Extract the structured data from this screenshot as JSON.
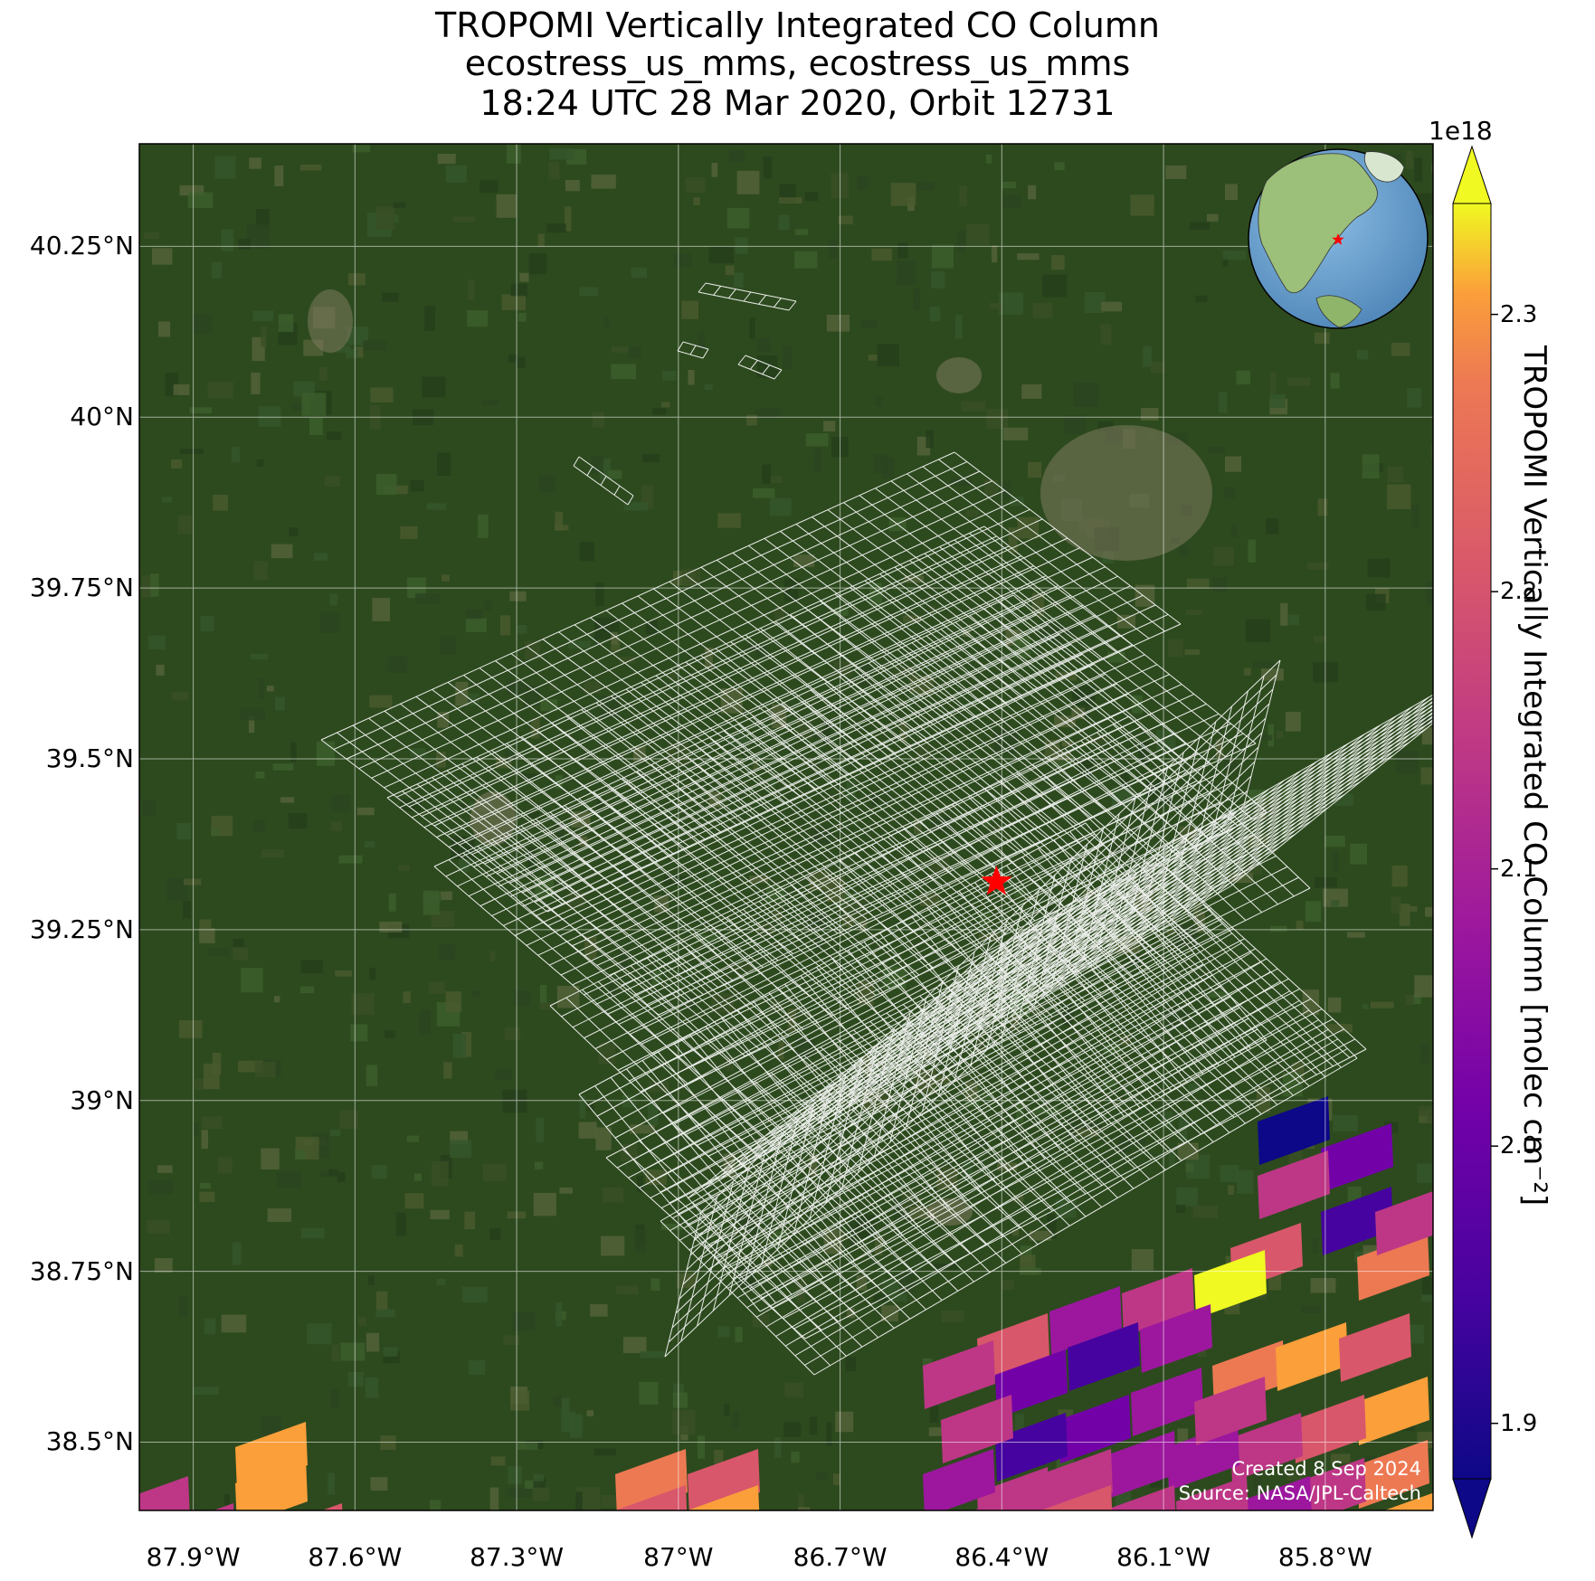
{
  "title": {
    "line1": "TROPOMI Vertically Integrated CO Column",
    "line2": "ecostress_us_mms, ecostress_us_mms",
    "line3": "18:24 UTC 28 Mar 2020, Orbit 12731"
  },
  "map": {
    "lon_range": [
      -88.0,
      -85.6
    ],
    "lat_range": [
      38.4,
      40.4
    ],
    "lat_ticks": [
      {
        "value": 40.25,
        "label": "40.25°N"
      },
      {
        "value": 40.0,
        "label": "40°N"
      },
      {
        "value": 39.75,
        "label": "39.75°N"
      },
      {
        "value": 39.5,
        "label": "39.5°N"
      },
      {
        "value": 39.25,
        "label": "39.25°N"
      },
      {
        "value": 39.0,
        "label": "39°N"
      },
      {
        "value": 38.75,
        "label": "38.75°N"
      },
      {
        "value": 38.5,
        "label": "38.5°N"
      }
    ],
    "lon_ticks": [
      {
        "value": -87.9,
        "label": "87.9°W"
      },
      {
        "value": -87.6,
        "label": "87.6°W"
      },
      {
        "value": -87.3,
        "label": "87.3°W"
      },
      {
        "value": -87.0,
        "label": "87°W"
      },
      {
        "value": -86.7,
        "label": "86.7°W"
      },
      {
        "value": -86.4,
        "label": "86.4°W"
      },
      {
        "value": -86.1,
        "label": "86.1°W"
      },
      {
        "value": -85.8,
        "label": "85.8°W"
      }
    ],
    "site_marker": {
      "lon": -86.41,
      "lat": 39.32,
      "color": "#ff0000"
    },
    "basemap_color": "#2d4a1e",
    "grid_color": "#ffffff"
  },
  "colorbar": {
    "min": 1.88,
    "max": 2.34,
    "exponent": "1e18",
    "ticks": [
      {
        "value": 1.9,
        "label": "1.9"
      },
      {
        "value": 2.0,
        "label": "2.0"
      },
      {
        "value": 2.1,
        "label": "2.1"
      },
      {
        "value": 2.2,
        "label": "2.2"
      },
      {
        "value": 2.3,
        "label": "2.3"
      }
    ],
    "label": "TROPOMI Vertically Integrated CO Column [molec cm⁻²]",
    "colormap": "plasma",
    "extend": "both"
  },
  "credits": {
    "created": "Created 8 Sep 2024",
    "source": "Source: NASA/JPL-Caltech"
  },
  "inset_globe": {
    "marker_color": "#ff0000",
    "ocean_color": "#6fa7d6",
    "land_color": "#9cbf7a"
  }
}
